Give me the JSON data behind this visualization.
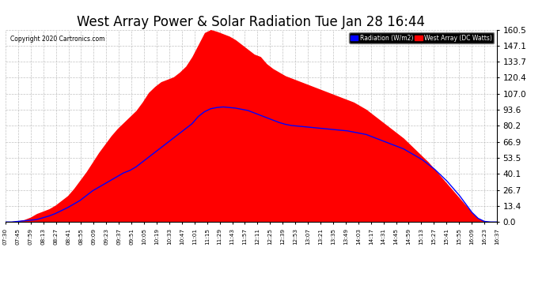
{
  "title": "West Array Power & Solar Radiation Tue Jan 28 16:44",
  "copyright": "Copyright 2020 Cartronics.com",
  "yticks": [
    0.0,
    13.4,
    26.7,
    40.1,
    53.5,
    66.9,
    80.2,
    93.6,
    107.0,
    120.4,
    133.7,
    147.1,
    160.5
  ],
  "ylim": [
    0,
    160.5
  ],
  "legend_labels": [
    "Radiation (W/m2)",
    "West Array (DC Watts)"
  ],
  "background_color": "#ffffff",
  "grid_color": "#bbbbbb",
  "title_fontsize": 12,
  "xtick_labels": [
    "07:30",
    "07:45",
    "07:59",
    "08:13",
    "08:27",
    "08:41",
    "08:55",
    "09:09",
    "09:23",
    "09:37",
    "09:51",
    "10:05",
    "10:19",
    "10:33",
    "10:47",
    "11:01",
    "11:15",
    "11:29",
    "11:43",
    "11:57",
    "12:11",
    "12:25",
    "12:39",
    "12:53",
    "13:07",
    "13:21",
    "13:35",
    "13:49",
    "14:03",
    "14:17",
    "14:31",
    "14:45",
    "14:59",
    "15:13",
    "15:27",
    "15:41",
    "15:55",
    "16:09",
    "16:23",
    "16:37"
  ],
  "red_area_values": [
    0.0,
    0.5,
    1.0,
    2.0,
    4.0,
    7.0,
    9.0,
    11.0,
    14.0,
    18.0,
    22.0,
    28.0,
    35.0,
    42.0,
    50.0,
    58.0,
    65.0,
    72.0,
    78.0,
    83.0,
    88.0,
    93.0,
    100.0,
    108.0,
    113.0,
    117.0,
    119.0,
    121.0,
    125.0,
    130.0,
    138.0,
    148.0,
    158.0,
    160.5,
    159.0,
    157.0,
    155.0,
    152.0,
    148.0,
    144.0,
    140.0,
    138.0,
    132.0,
    128.0,
    125.0,
    122.0,
    120.0,
    118.0,
    116.0,
    114.0,
    112.0,
    110.0,
    108.0,
    106.0,
    104.0,
    102.0,
    100.0,
    97.0,
    94.0,
    90.0,
    86.0,
    82.0,
    78.0,
    74.0,
    70.0,
    65.0,
    60.0,
    55.0,
    50.0,
    44.0,
    38.0,
    32.0,
    26.0,
    20.0,
    14.0,
    8.0,
    3.0,
    1.0,
    0.0,
    0.0
  ],
  "blue_line_values": [
    0.0,
    0.0,
    0.5,
    1.0,
    1.5,
    2.0,
    3.5,
    5.0,
    7.0,
    9.5,
    12.0,
    15.0,
    18.0,
    22.0,
    26.0,
    29.0,
    32.0,
    35.0,
    38.0,
    41.0,
    43.0,
    46.0,
    50.0,
    54.0,
    58.0,
    62.0,
    66.0,
    70.0,
    74.0,
    78.0,
    82.0,
    88.0,
    92.0,
    94.5,
    95.5,
    96.0,
    95.5,
    95.0,
    94.0,
    93.0,
    91.0,
    89.0,
    87.0,
    85.0,
    83.0,
    81.5,
    80.5,
    80.0,
    79.5,
    79.0,
    78.5,
    78.0,
    77.5,
    77.0,
    76.5,
    76.0,
    75.0,
    74.0,
    73.0,
    71.0,
    69.0,
    67.0,
    65.0,
    63.0,
    61.0,
    58.0,
    55.0,
    52.0,
    48.0,
    44.0,
    39.0,
    34.0,
    28.0,
    22.0,
    15.0,
    8.0,
    3.0,
    0.5,
    0.0,
    0.0
  ]
}
